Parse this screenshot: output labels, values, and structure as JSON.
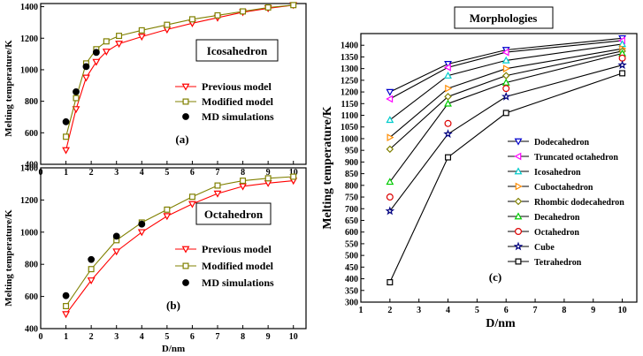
{
  "chart_data": [
    {
      "type": "line",
      "panel_label": "(a)",
      "title": "Icosahedron",
      "xlabel": "",
      "ylabel": "Melting temperature/K",
      "xlim": [
        0,
        10.5
      ],
      "ylim": [
        400,
        1420
      ],
      "xticks": [
        "0",
        "1",
        "2",
        "3",
        "4",
        "5",
        "6",
        "7",
        "8",
        "9",
        "10"
      ],
      "yticks": [
        "400",
        "600",
        "800",
        "1000",
        "1200",
        "1400"
      ],
      "series": [
        {
          "name": "Previous model",
          "color": "#ff0000",
          "marker": "tri-down",
          "x": [
            1,
            1.4,
            1.8,
            2.2,
            2.6,
            3.1,
            4,
            5,
            6,
            7,
            8,
            9,
            10
          ],
          "y": [
            490,
            750,
            950,
            1050,
            1115,
            1165,
            1210,
            1255,
            1295,
            1330,
            1365,
            1390,
            1410
          ]
        },
        {
          "name": "Modified model",
          "color": "#808000",
          "marker": "square",
          "x": [
            1,
            1.4,
            1.8,
            2.2,
            2.6,
            3.1,
            4,
            5,
            6,
            7,
            8,
            9,
            10
          ],
          "y": [
            575,
            820,
            1040,
            1130,
            1180,
            1215,
            1250,
            1285,
            1320,
            1345,
            1370,
            1395,
            1410
          ]
        },
        {
          "name": "MD simulations",
          "color": "#000000",
          "marker": "circle",
          "x": [
            1,
            1.4,
            1.8,
            2.2
          ],
          "y": [
            670,
            860,
            1020,
            1110
          ]
        }
      ]
    },
    {
      "type": "line",
      "panel_label": "(b)",
      "title": "Octahedron",
      "xlabel": "D/nm",
      "ylabel": "Melting temperature/K",
      "xlim": [
        0,
        10.5
      ],
      "ylim": [
        400,
        1400
      ],
      "xticks": [
        "0",
        "1",
        "2",
        "3",
        "4",
        "5",
        "6",
        "7",
        "8",
        "9",
        "10"
      ],
      "yticks": [
        "400",
        "600",
        "800",
        "1000",
        "1200",
        "1400"
      ],
      "series": [
        {
          "name": "Previous model",
          "color": "#ff0000",
          "marker": "tri-down",
          "x": [
            1,
            2,
            3,
            4,
            5,
            6,
            7,
            8,
            9,
            10
          ],
          "y": [
            490,
            700,
            880,
            1000,
            1100,
            1175,
            1240,
            1285,
            1305,
            1320
          ]
        },
        {
          "name": "Modified model",
          "color": "#808000",
          "marker": "square",
          "x": [
            1,
            2,
            3,
            4,
            5,
            6,
            7,
            8,
            9,
            10
          ],
          "y": [
            540,
            770,
            950,
            1060,
            1140,
            1220,
            1290,
            1320,
            1335,
            1345
          ]
        },
        {
          "name": "MD simulations",
          "color": "#000000",
          "marker": "circle",
          "x": [
            1,
            2,
            3,
            4
          ],
          "y": [
            605,
            830,
            975,
            1050
          ]
        }
      ]
    },
    {
      "type": "line",
      "panel_label": "(c)",
      "title": "Morphologies",
      "xlabel": "D/nm",
      "ylabel": "Melting temperature/K",
      "xlim": [
        1,
        10.5
      ],
      "ylim": [
        300,
        1450
      ],
      "xticks": [
        "1",
        "2",
        "3",
        "4",
        "5",
        "6",
        "7",
        "8",
        "9",
        "10"
      ],
      "yticks": [
        "300",
        "350",
        "400",
        "450",
        "500",
        "550",
        "600",
        "650",
        "700",
        "750",
        "800",
        "850",
        "900",
        "950",
        "1000",
        "1050",
        "1100",
        "1150",
        "1200",
        "1250",
        "1300",
        "1350",
        "1400"
      ],
      "series": [
        {
          "name": "Dodecahedron",
          "color": "#0000cc",
          "marker": "tri-down",
          "x": [
            2,
            4,
            6,
            10
          ],
          "y": [
            1200,
            1320,
            1380,
            1430
          ]
        },
        {
          "name": "Truncated octahedron",
          "color": "#ff00ff",
          "marker": "tri-left",
          "x": [
            2,
            4,
            6,
            10
          ],
          "y": [
            1170,
            1305,
            1370,
            1420
          ]
        },
        {
          "name": "Icosahedron",
          "color": "#00cccc",
          "marker": "tri-up",
          "x": [
            2,
            4,
            6,
            10
          ],
          "y": [
            1080,
            1270,
            1335,
            1405
          ]
        },
        {
          "name": "Cuboctahedron",
          "color": "#ff8c00",
          "marker": "tri-right",
          "x": [
            2,
            4,
            6,
            10
          ],
          "y": [
            1005,
            1215,
            1300,
            1385
          ]
        },
        {
          "name": "Rhombic dodecahedron",
          "color": "#808000",
          "marker": "diamond",
          "x": [
            2,
            4,
            6,
            10
          ],
          "y": [
            955,
            1180,
            1270,
            1375
          ]
        },
        {
          "name": "Decahedron",
          "color": "#00cc00",
          "marker": "tri-up",
          "x": [
            2,
            4,
            6,
            10
          ],
          "y": [
            815,
            1150,
            1240,
            1365
          ]
        },
        {
          "name": "Octahedron",
          "color": "#dd0000",
          "marker": "circle",
          "x": [
            2,
            4,
            6,
            10
          ],
          "y": [
            750,
            1065,
            1215,
            1345
          ]
        },
        {
          "name": "Cube",
          "color": "#000080",
          "marker": "star",
          "x": [
            2,
            4,
            6,
            10
          ],
          "y": [
            690,
            1020,
            1180,
            1315
          ]
        },
        {
          "name": "Tetrahedron",
          "color": "#000000",
          "marker": "square",
          "x": [
            2,
            4,
            6,
            10
          ],
          "y": [
            385,
            920,
            1110,
            1280
          ]
        }
      ]
    }
  ]
}
